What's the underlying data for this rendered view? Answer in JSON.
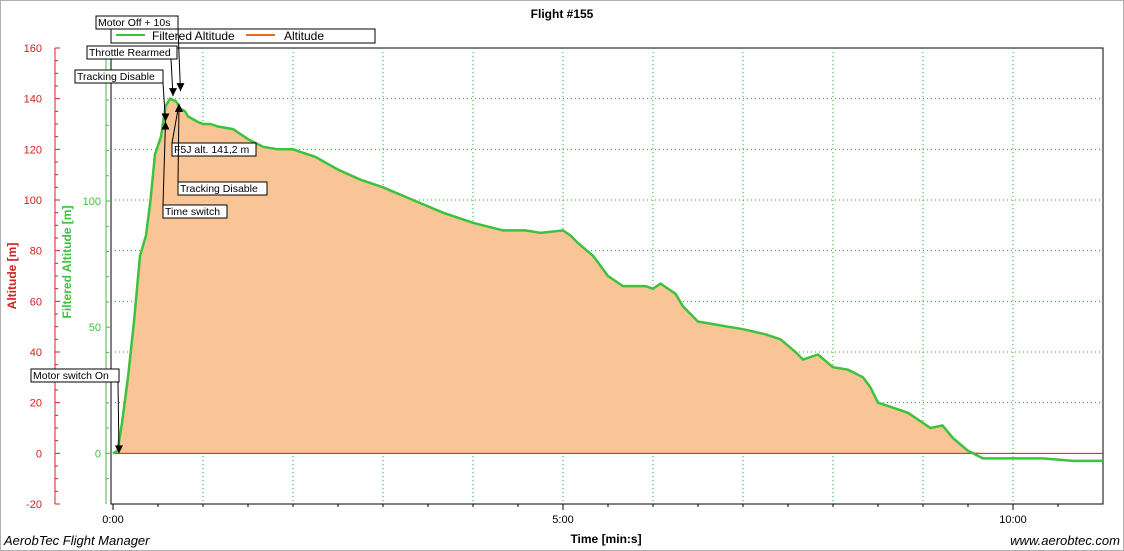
{
  "app": {
    "footer_left": "AerobTec Flight Manager",
    "footer_right": "www.aerobtec.com"
  },
  "chart_data": {
    "type": "area",
    "title": "Flight #155",
    "xlabel": "Time [min:s]",
    "ylabel_left": "Altitude [m]",
    "ylabel_mid": "Filtered Altitude [m]",
    "xlim": [
      0,
      660
    ],
    "ylim": [
      -20,
      160
    ],
    "x_ticks": [
      {
        "value": 0,
        "label": "0:00"
      },
      {
        "value": 300,
        "label": "5:00"
      },
      {
        "value": 600,
        "label": "10:00"
      }
    ],
    "y_ticks_altitude": [
      -20,
      0,
      20,
      40,
      60,
      80,
      100,
      120,
      140,
      160
    ],
    "y_ticks_filtered": [
      {
        "value": 0,
        "label": "0"
      },
      {
        "value": 50,
        "label": "50"
      },
      {
        "value": 100,
        "label": "100"
      }
    ],
    "grid": true,
    "legend": {
      "placement": "top-left",
      "entries": [
        {
          "name": "Filtered Altitude",
          "color": "#3cc23c"
        },
        {
          "name": "Altitude",
          "color": "#e86a1f"
        }
      ]
    },
    "colors": {
      "altitude_axis": "#d42020",
      "filtered_axis": "#3cc23c",
      "area_fill": "#f9c596",
      "zero_line": "#c02020",
      "grid": "#33aa33"
    },
    "series": [
      {
        "name": "Filtered Altitude",
        "x": [
          0,
          3,
          6,
          10,
          14,
          18,
          22,
          25,
          28,
          32,
          35,
          38,
          42,
          45,
          48,
          50,
          53,
          56,
          60,
          65,
          70,
          80,
          90,
          100,
          110,
          115,
          120,
          125,
          135,
          150,
          165,
          180,
          200,
          220,
          240,
          260,
          275,
          285,
          300,
          305,
          310,
          320,
          330,
          340,
          355,
          360,
          365,
          375,
          380,
          390,
          400,
          410,
          420,
          435,
          445,
          455,
          460,
          465,
          470,
          480,
          490,
          500,
          505,
          510,
          520,
          530,
          535,
          545,
          553,
          560,
          570,
          580,
          590,
          600,
          605,
          610,
          615,
          620,
          640,
          660
        ],
        "y": [
          0,
          1,
          12,
          30,
          52,
          78,
          86,
          100,
          118,
          125,
          137,
          140,
          139,
          136,
          135,
          133,
          132,
          131,
          130,
          130,
          129,
          128,
          124,
          121,
          120,
          120,
          120,
          119,
          117,
          112,
          108,
          105,
          100,
          95,
          91,
          88,
          88,
          87,
          88,
          86,
          83,
          78,
          70,
          66,
          66,
          65,
          67,
          63,
          58,
          52,
          51,
          50,
          49,
          47,
          45,
          40,
          37,
          38,
          39,
          34,
          33,
          30,
          26,
          20,
          18,
          16,
          14,
          10,
          11,
          6,
          1,
          -2,
          -2,
          -2,
          -2,
          -2,
          -2,
          -2,
          -3,
          -3
        ]
      },
      {
        "name": "Altitude",
        "x": [
          0,
          3,
          6,
          10,
          14,
          18,
          22,
          25,
          28,
          32,
          35,
          38,
          42,
          45,
          48,
          50,
          53,
          56,
          60,
          65,
          70,
          80,
          90,
          100,
          110,
          115,
          120,
          125,
          135,
          150,
          165,
          180,
          200,
          220,
          240,
          260,
          275,
          285,
          300,
          305,
          310,
          320,
          330,
          340,
          355,
          360,
          365,
          375,
          380,
          390,
          400,
          410,
          420,
          435,
          445,
          455,
          460,
          465,
          470,
          480,
          490,
          500,
          505,
          510,
          520,
          530,
          535,
          545,
          553,
          560,
          570,
          580,
          590,
          600,
          605,
          610,
          615,
          620,
          640,
          660
        ],
        "y": [
          0,
          1,
          12,
          30,
          52,
          78,
          86,
          100,
          118,
          125,
          137,
          140,
          139,
          136,
          135,
          133,
          132,
          131,
          130,
          130,
          129,
          128,
          124,
          121,
          120,
          120,
          120,
          119,
          117,
          112,
          108,
          105,
          100,
          95,
          91,
          88,
          88,
          87,
          88,
          86,
          83,
          78,
          70,
          66,
          66,
          65,
          67,
          63,
          58,
          52,
          51,
          50,
          49,
          47,
          45,
          40,
          37,
          38,
          39,
          34,
          33,
          30,
          26,
          20,
          18,
          16,
          14,
          10,
          11,
          6,
          1,
          0,
          0,
          0,
          0,
          0,
          0,
          0,
          0,
          0
        ]
      }
    ],
    "annotations": [
      {
        "label": "Motor switch On",
        "x": 4,
        "y": 0
      },
      {
        "label": "Tracking Disable",
        "x": 35,
        "y": 131
      },
      {
        "label": "Throttle Rearmed",
        "x": 40,
        "y": 141
      },
      {
        "label": "Motor Off + 10s",
        "x": 45,
        "y": 143
      },
      {
        "label": "F5J alt. 141,2 m",
        "x": 44,
        "y": 138
      },
      {
        "label": "Tracking Disable",
        "x": 44,
        "y": 138
      },
      {
        "label": "Time switch",
        "x": 35,
        "y": 131
      }
    ]
  }
}
